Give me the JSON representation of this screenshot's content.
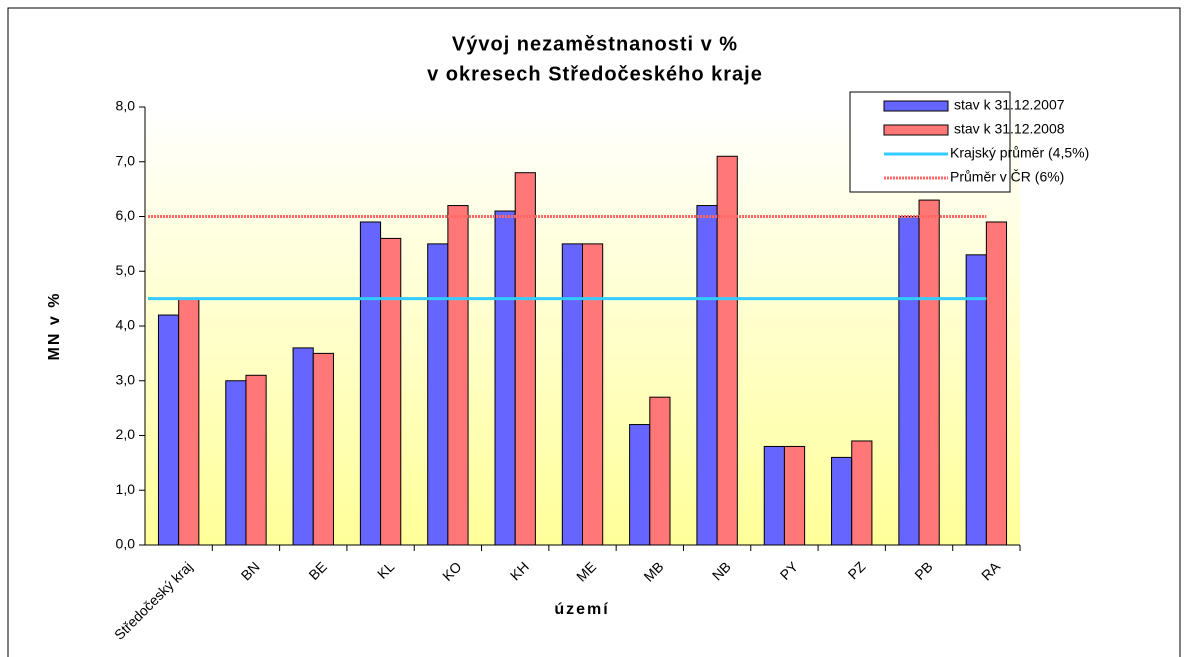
{
  "chart_data": {
    "type": "bar",
    "title": [
      "Vývoj nezaměstnanosti v %",
      "v okresech Středočeského kraje"
    ],
    "y_label": "MN v %",
    "x_label": "území",
    "categories": [
      "Středočeský kraj",
      "BN",
      "BE",
      "KL",
      "KO",
      "KH",
      "ME",
      "MB",
      "NB",
      "PY",
      "PZ",
      "PB",
      "RA"
    ],
    "series": [
      {
        "name": "stav k 31.12.2007",
        "color": "#6666ff",
        "values": [
          4.2,
          3.0,
          3.6,
          5.9,
          5.5,
          6.1,
          5.5,
          2.2,
          6.2,
          1.8,
          1.6,
          6.0,
          5.3
        ]
      },
      {
        "name": "stav k 31.12.2008",
        "color": "#ff7777",
        "values": [
          4.5,
          3.1,
          3.5,
          5.6,
          6.2,
          6.8,
          5.5,
          2.7,
          7.1,
          1.8,
          1.9,
          6.3,
          5.9
        ]
      }
    ],
    "reference_lines": [
      {
        "name": "Krajský průměr (4,5%)",
        "value": 4.5,
        "color": "#33ccff",
        "style": "solid"
      },
      {
        "name": "Průměr v ČR (6%)",
        "value": 6,
        "color": "#ff6666",
        "style": "dotted"
      }
    ],
    "ylim": [
      0,
      8
    ],
    "yticks": [
      {
        "value": 0,
        "label": "0,0"
      },
      {
        "value": 1,
        "label": "1,0"
      },
      {
        "value": 2,
        "label": "2,0"
      },
      {
        "value": 3,
        "label": "3,0"
      },
      {
        "value": 4,
        "label": "4,0"
      },
      {
        "value": 5,
        "label": "5,0"
      },
      {
        "value": 6,
        "label": "6,0"
      },
      {
        "value": 7,
        "label": "7,0"
      },
      {
        "value": 8,
        "label": "8,0"
      }
    ],
    "legend": "top-right"
  }
}
